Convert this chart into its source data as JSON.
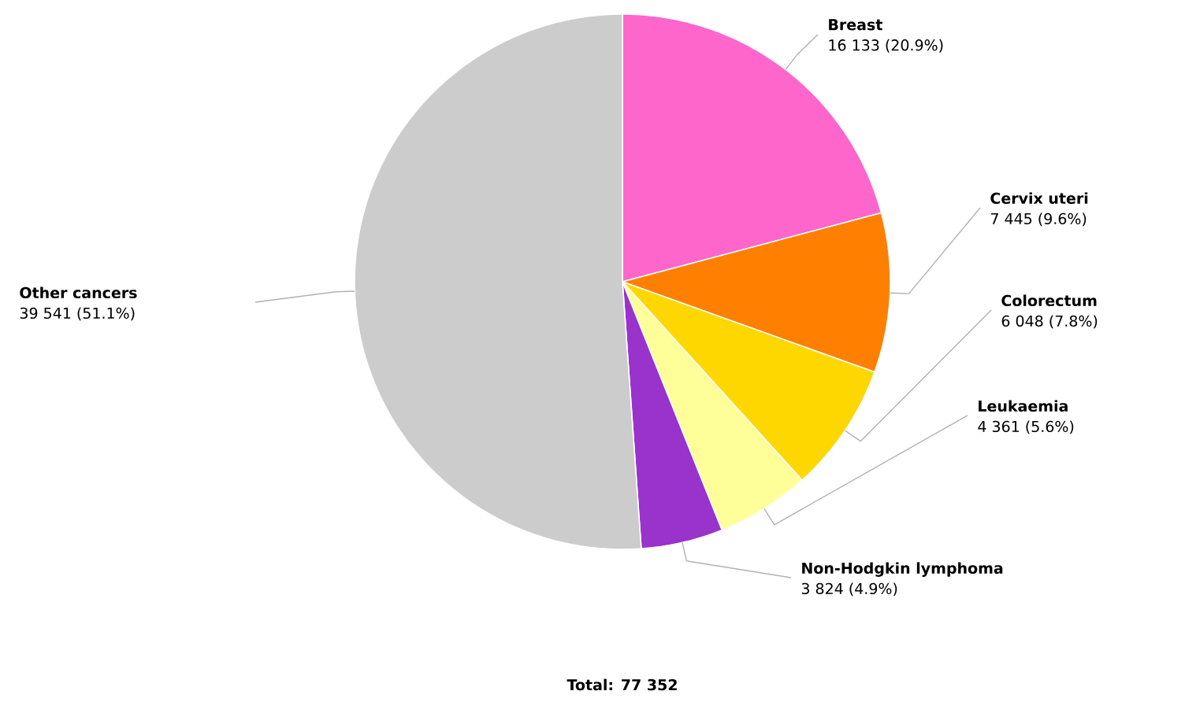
{
  "chart_data": {
    "type": "pie",
    "categories": [
      "Breast",
      "Cervix uteri",
      "Colorectum",
      "Leukaemia",
      "Non-Hodgkin lymphoma",
      "Other cancers"
    ],
    "values": [
      16133,
      7445,
      6048,
      4361,
      3824,
      39541
    ],
    "colors": [
      "#ff66cc",
      "#ff7f00",
      "#ffd700",
      "#ffff99",
      "#9933cc",
      "#cccccc"
    ],
    "value_labels": [
      "16 133 (20.9%)",
      "7 445 (9.6%)",
      "6 048 (7.8%)",
      "4 361 (5.6%)",
      "3 824 (4.9%)",
      "39 541 (51.1%)"
    ],
    "annotations": [
      "Total: 77 352"
    ]
  }
}
